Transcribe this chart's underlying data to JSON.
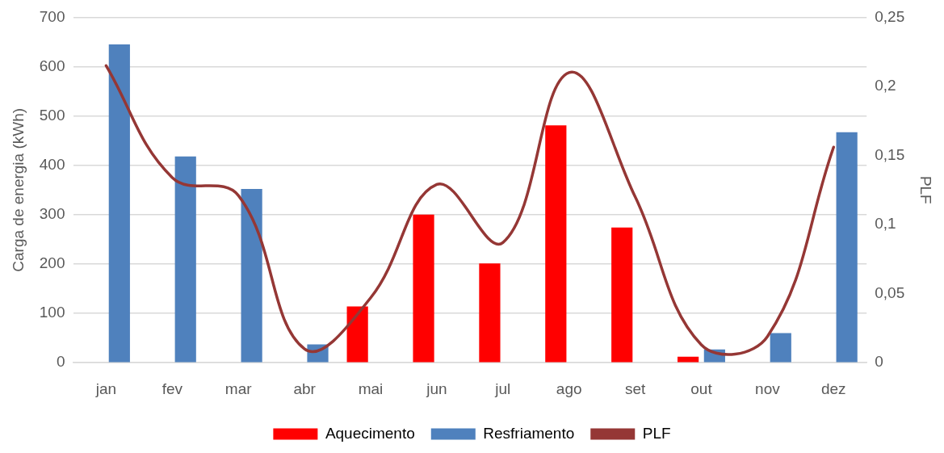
{
  "chart_data": {
    "type": "bar",
    "ylabel": "Carga de energia (kWh)",
    "y2label": "PLF",
    "categories": [
      "jan",
      "fev",
      "mar",
      "abr",
      "mai",
      "jun",
      "jul",
      "ago",
      "set",
      "out",
      "nov",
      "dez"
    ],
    "series": [
      {
        "name": "Aquecimento",
        "color": "#ff0000",
        "values": [
          null,
          null,
          null,
          null,
          114,
          300,
          201,
          481,
          274,
          12,
          null,
          null
        ]
      },
      {
        "name": "Resfriamento",
        "color": "#4f81bd",
        "values": [
          645,
          418,
          352,
          37,
          null,
          null,
          null,
          null,
          null,
          27,
          60,
          467
        ]
      },
      {
        "type": "line",
        "axis": "y2",
        "name": "PLF",
        "color": "#953735",
        "values": [
          0.215,
          0.134,
          0.121,
          0.01,
          0.047,
          0.129,
          0.087,
          0.21,
          0.12,
          0.013,
          0.019,
          0.156
        ]
      }
    ],
    "ylim": [
      0,
      700
    ],
    "yticks": [
      0,
      100,
      200,
      300,
      400,
      500,
      600,
      700
    ],
    "y2lim": [
      0,
      0.25
    ],
    "y2ticks": [
      {
        "value": 0,
        "label": "0"
      },
      {
        "value": 0.05,
        "label": "0,05"
      },
      {
        "value": 0.1,
        "label": "0,1"
      },
      {
        "value": 0.15,
        "label": "0,15"
      },
      {
        "value": 0.2,
        "label": "0,2"
      },
      {
        "value": 0.25,
        "label": "0,25"
      }
    ],
    "grid": "y",
    "legend": "bottom",
    "marker": "none",
    "line_style": "solid"
  }
}
